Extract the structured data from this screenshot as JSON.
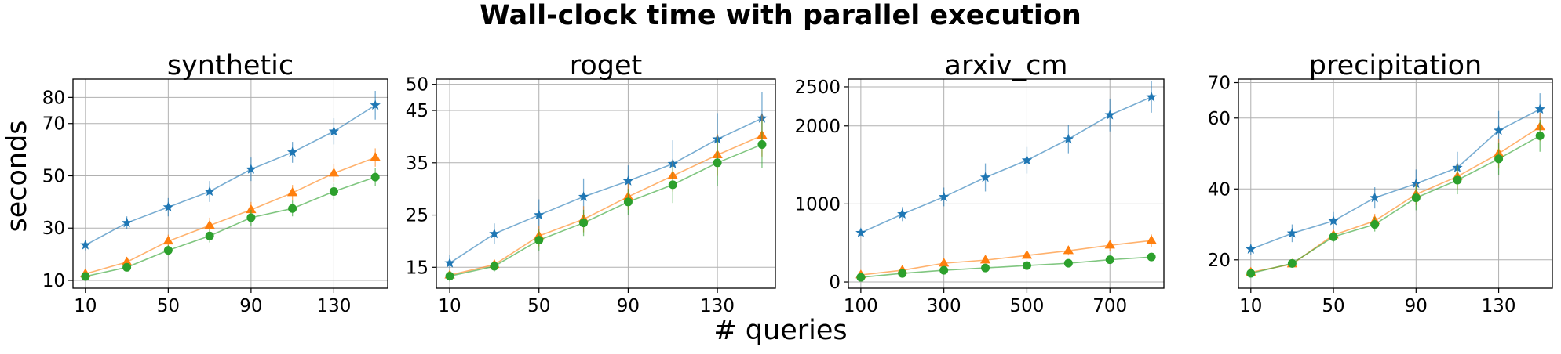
{
  "figure": {
    "suptitle": "Wall-clock time with parallel execution",
    "ylabel": "seconds",
    "xlabel": "# queries"
  },
  "colors": {
    "blue": "#1f77b4",
    "orange": "#ff7f0e",
    "green": "#2ca02c"
  },
  "chart_data": [
    {
      "type": "line",
      "title": "synthetic",
      "xlim": [
        4,
        156
      ],
      "ylim": [
        7,
        87
      ],
      "xticks": [
        10,
        50,
        90,
        130
      ],
      "yticks": [
        10,
        30,
        50,
        70,
        80
      ],
      "grid": true,
      "x": [
        10,
        30,
        50,
        70,
        90,
        110,
        130,
        150
      ],
      "series": [
        {
          "color": "blue",
          "marker": "star",
          "values": [
            23.5,
            32,
            38,
            44,
            52.5,
            59,
            67,
            77
          ],
          "errors": [
            2,
            2.5,
            3.5,
            4,
            4.5,
            4,
            5,
            5.5
          ]
        },
        {
          "color": "orange",
          "marker": "triangle",
          "values": [
            12.5,
            17,
            25,
            31,
            37,
            43.5,
            51,
            57
          ],
          "errors": [
            1.5,
            2,
            2.5,
            3,
            3,
            3,
            3.5,
            3.5
          ]
        },
        {
          "color": "green",
          "marker": "circle",
          "values": [
            11.5,
            15,
            21.5,
            27,
            34,
            37.5,
            44,
            49.5
          ],
          "errors": [
            1,
            1.5,
            2,
            2.5,
            3,
            3,
            3,
            3.5
          ]
        }
      ]
    },
    {
      "type": "line",
      "title": "roget",
      "xlim": [
        4,
        156
      ],
      "ylim": [
        11,
        51
      ],
      "xticks": [
        10,
        50,
        90,
        130
      ],
      "yticks": [
        15,
        25,
        35,
        45,
        50
      ],
      "grid": true,
      "x": [
        10,
        30,
        50,
        70,
        90,
        110,
        130,
        150
      ],
      "series": [
        {
          "color": "blue",
          "marker": "star",
          "values": [
            15.8,
            21.4,
            25,
            28.5,
            31.5,
            34.8,
            39.5,
            43.5
          ],
          "errors": [
            1.5,
            2,
            3,
            3.5,
            3,
            4.5,
            5,
            5
          ]
        },
        {
          "color": "orange",
          "marker": "triangle",
          "values": [
            13.5,
            15.5,
            21,
            24.2,
            28.5,
            32.5,
            36.5,
            40.2
          ],
          "errors": [
            1,
            1,
            2,
            2.5,
            2.5,
            3,
            4,
            4
          ]
        },
        {
          "color": "green",
          "marker": "circle",
          "values": [
            13.3,
            15.2,
            20.2,
            23.5,
            27.5,
            30.8,
            35,
            38.5
          ],
          "errors": [
            1,
            1,
            2,
            2.5,
            2.5,
            3.5,
            4.5,
            4.5
          ]
        }
      ]
    },
    {
      "type": "line",
      "title": "arxiv_cm",
      "xlim": [
        70,
        830
      ],
      "ylim": [
        -80,
        2600
      ],
      "xticks": [
        100,
        300,
        500,
        700
      ],
      "yticks": [
        0,
        1000,
        2000,
        2500
      ],
      "grid": true,
      "x": [
        100,
        200,
        300,
        400,
        500,
        600,
        700,
        800
      ],
      "series": [
        {
          "color": "blue",
          "marker": "star",
          "values": [
            630,
            870,
            1090,
            1340,
            1560,
            1830,
            2140,
            2370
          ],
          "errors": [
            40,
            90,
            120,
            180,
            170,
            180,
            210,
            200
          ]
        },
        {
          "color": "orange",
          "marker": "triangle",
          "values": [
            90,
            150,
            240,
            280,
            340,
            400,
            470,
            530
          ],
          "errors": [
            10,
            20,
            40,
            40,
            40,
            60,
            70,
            80
          ]
        },
        {
          "color": "green",
          "marker": "circle",
          "values": [
            60,
            110,
            150,
            180,
            210,
            240,
            285,
            320
          ],
          "errors": [
            10,
            10,
            20,
            20,
            20,
            20,
            20,
            30
          ]
        }
      ]
    },
    {
      "type": "line",
      "title": "precipitation",
      "xlim": [
        4,
        156
      ],
      "ylim": [
        12,
        71
      ],
      "xticks": [
        10,
        50,
        90,
        130
      ],
      "yticks": [
        20,
        40,
        60,
        70
      ],
      "grid": true,
      "x": [
        10,
        30,
        50,
        70,
        90,
        110,
        130,
        150
      ],
      "series": [
        {
          "color": "blue",
          "marker": "star",
          "values": [
            23,
            27.5,
            31,
            37.5,
            41.5,
            46,
            56.5,
            62.5
          ],
          "errors": [
            1.5,
            2.5,
            2.5,
            3,
            4,
            4.5,
            5.5,
            4.5
          ]
        },
        {
          "color": "orange",
          "marker": "triangle",
          "values": [
            16.5,
            18.8,
            27,
            31,
            38.5,
            43.5,
            50,
            57.5
          ],
          "errors": [
            1,
            1,
            1.5,
            2,
            3,
            3.5,
            4,
            4
          ]
        },
        {
          "color": "green",
          "marker": "circle",
          "values": [
            16.2,
            19,
            26.5,
            30,
            37.5,
            42.5,
            48.5,
            55
          ],
          "errors": [
            1,
            1,
            1.5,
            2,
            3.5,
            4,
            4.5,
            4.5
          ]
        }
      ]
    }
  ]
}
